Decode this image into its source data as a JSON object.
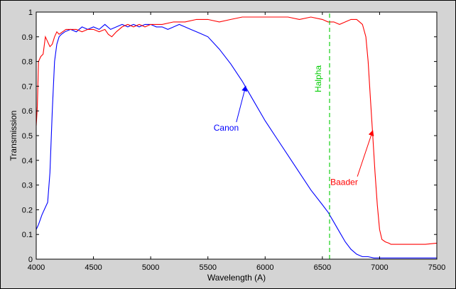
{
  "chart_data": {
    "type": "line",
    "title": "",
    "xlabel": "Wavelength (A)",
    "ylabel": "Transmission",
    "xlim": [
      4000,
      7500
    ],
    "ylim": [
      0,
      1
    ],
    "x_ticks": [
      "4000",
      "4500",
      "5000",
      "5500",
      "6000",
      "6500",
      "7000",
      "7500"
    ],
    "y_ticks": [
      "0",
      "0.1",
      "0.2",
      "0.3",
      "0.4",
      "0.5",
      "0.6",
      "0.7",
      "0.8",
      "0.9",
      "1"
    ],
    "grid": false,
    "background_color": "#ffffff",
    "figure_color": "#d4d4d4",
    "series": [
      {
        "name": "Canon",
        "color": "#0000ff",
        "x": [
          4000,
          4020,
          4050,
          4080,
          4100,
          4120,
          4140,
          4160,
          4180,
          4200,
          4220,
          4250,
          4300,
          4350,
          4400,
          4450,
          4500,
          4550,
          4600,
          4650,
          4700,
          4750,
          4800,
          4850,
          4900,
          4950,
          5000,
          5050,
          5100,
          5150,
          5200,
          5250,
          5300,
          5350,
          5400,
          5450,
          5500,
          5600,
          5700,
          5800,
          5900,
          6000,
          6100,
          6200,
          6300,
          6400,
          6500,
          6550,
          6575,
          6600,
          6650,
          6700,
          6750,
          6800,
          6850,
          6900,
          6950,
          7000,
          7100,
          7200,
          7300,
          7400,
          7500
        ],
        "y": [
          0.12,
          0.14,
          0.18,
          0.21,
          0.23,
          0.35,
          0.6,
          0.8,
          0.87,
          0.9,
          0.91,
          0.92,
          0.93,
          0.92,
          0.94,
          0.93,
          0.94,
          0.93,
          0.95,
          0.93,
          0.94,
          0.95,
          0.94,
          0.95,
          0.94,
          0.95,
          0.95,
          0.94,
          0.94,
          0.93,
          0.94,
          0.95,
          0.94,
          0.93,
          0.92,
          0.91,
          0.9,
          0.85,
          0.79,
          0.72,
          0.64,
          0.56,
          0.49,
          0.42,
          0.35,
          0.28,
          0.22,
          0.19,
          0.17,
          0.15,
          0.11,
          0.07,
          0.04,
          0.02,
          0.01,
          0.01,
          0.005,
          0.005,
          0.005,
          0.005,
          0.005,
          0.005,
          0.005
        ]
      },
      {
        "name": "Baader",
        "color": "#ff0000",
        "x": [
          4000,
          4010,
          4020,
          4040,
          4060,
          4080,
          4100,
          4120,
          4140,
          4160,
          4180,
          4200,
          4230,
          4260,
          4300,
          4350,
          4400,
          4450,
          4500,
          4550,
          4600,
          4630,
          4660,
          4700,
          4750,
          4800,
          4850,
          4900,
          4950,
          5000,
          5100,
          5200,
          5300,
          5400,
          5500,
          5600,
          5700,
          5800,
          5900,
          6000,
          6100,
          6200,
          6300,
          6400,
          6500,
          6550,
          6600,
          6650,
          6700,
          6750,
          6800,
          6850,
          6880,
          6900,
          6920,
          6940,
          6960,
          6980,
          7000,
          7020,
          7050,
          7080,
          7100,
          7150,
          7200,
          7300,
          7400,
          7500
        ],
        "y": [
          0.54,
          0.62,
          0.8,
          0.82,
          0.83,
          0.9,
          0.88,
          0.86,
          0.87,
          0.9,
          0.92,
          0.91,
          0.92,
          0.93,
          0.93,
          0.93,
          0.92,
          0.93,
          0.93,
          0.92,
          0.93,
          0.91,
          0.9,
          0.92,
          0.94,
          0.95,
          0.94,
          0.95,
          0.94,
          0.95,
          0.95,
          0.96,
          0.96,
          0.97,
          0.97,
          0.96,
          0.97,
          0.98,
          0.98,
          0.98,
          0.98,
          0.98,
          0.97,
          0.98,
          0.97,
          0.96,
          0.96,
          0.95,
          0.96,
          0.97,
          0.97,
          0.95,
          0.9,
          0.8,
          0.65,
          0.5,
          0.35,
          0.22,
          0.12,
          0.08,
          0.07,
          0.065,
          0.06,
          0.06,
          0.06,
          0.06,
          0.06,
          0.065
        ]
      },
      {
        "name": "Halpha",
        "color": "#00cc00",
        "style": "dashed",
        "x": [
          6563,
          6563
        ],
        "y": [
          0,
          1
        ]
      }
    ],
    "annotations": [
      {
        "text": "Canon",
        "color": "#0000ff",
        "x": 5550,
        "y": 0.52,
        "arrow_to": [
          5830,
          0.7
        ]
      },
      {
        "text": "Baader",
        "color": "#ff0000",
        "x": 6570,
        "y": 0.3,
        "arrow_to": [
          6940,
          0.52
        ]
      },
      {
        "text": "Halpha",
        "color": "#00cc00",
        "x": 6490,
        "y": 0.73,
        "rotation": -90
      }
    ]
  }
}
